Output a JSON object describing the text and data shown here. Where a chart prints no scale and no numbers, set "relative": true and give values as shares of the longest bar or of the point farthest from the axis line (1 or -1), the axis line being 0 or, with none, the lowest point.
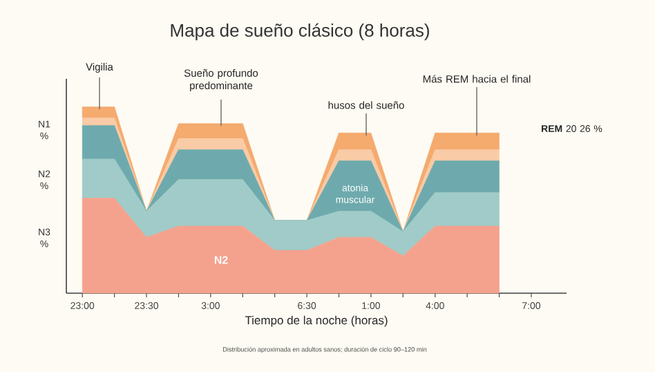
{
  "chart_data": {
    "type": "area",
    "stacked": true,
    "relative": true,
    "title": "Mapa de sueño clásico (8 horas)",
    "xlabel": "Tiempo de la noche (horas)",
    "categories": [
      "23:00",
      null,
      "23:30",
      null,
      "3:00",
      null,
      null,
      "6:30",
      null,
      "1:00",
      null,
      "4:00",
      null,
      null,
      "7:00"
    ],
    "series": [
      {
        "name": "N2",
        "color": "#f4a28e",
        "values": [
          0.51,
          0.51,
          0.3,
          0.36,
          0.36,
          0.36,
          0.23,
          0.23,
          0.3,
          0.3,
          0.2,
          0.36,
          0.36,
          0.36,
          null
        ]
      },
      {
        "color": "#a0cbc8",
        "values": [
          0.21,
          0.21,
          0.14,
          0.25,
          0.25,
          0.25,
          0.16,
          0.16,
          0.14,
          0.14,
          0.13,
          0.18,
          0.18,
          0.18,
          null
        ]
      },
      {
        "color": "#6eaaad",
        "values": [
          0.18,
          0.18,
          0,
          0.16,
          0.16,
          0.16,
          0,
          0,
          0.27,
          0.27,
          0,
          0.17,
          0.17,
          0.17,
          null
        ]
      },
      {
        "color": "#f9cba6",
        "values": [
          0.04,
          0.04,
          0,
          0.06,
          0.06,
          0.06,
          0,
          0,
          0.06,
          0.06,
          0,
          0.06,
          0.06,
          0.06,
          null
        ]
      },
      {
        "color": "#f5aa6e",
        "values": [
          0.06,
          0.06,
          0,
          0.08,
          0.08,
          0.08,
          0,
          0,
          0.09,
          0.09,
          0,
          0.09,
          0.09,
          0.09,
          null
        ]
      }
    ],
    "annotations": [
      "Vigilia",
      "Sueño profundo predominante",
      "husos del sueño",
      "Más REM hacia el final",
      "atonia muscular",
      "**REM** 20 26 %",
      "N1 %",
      "N2 %",
      "N3 %",
      "Distribución aproximada en adultos sanos; duración de ciclo 90–120 min"
    ]
  }
}
